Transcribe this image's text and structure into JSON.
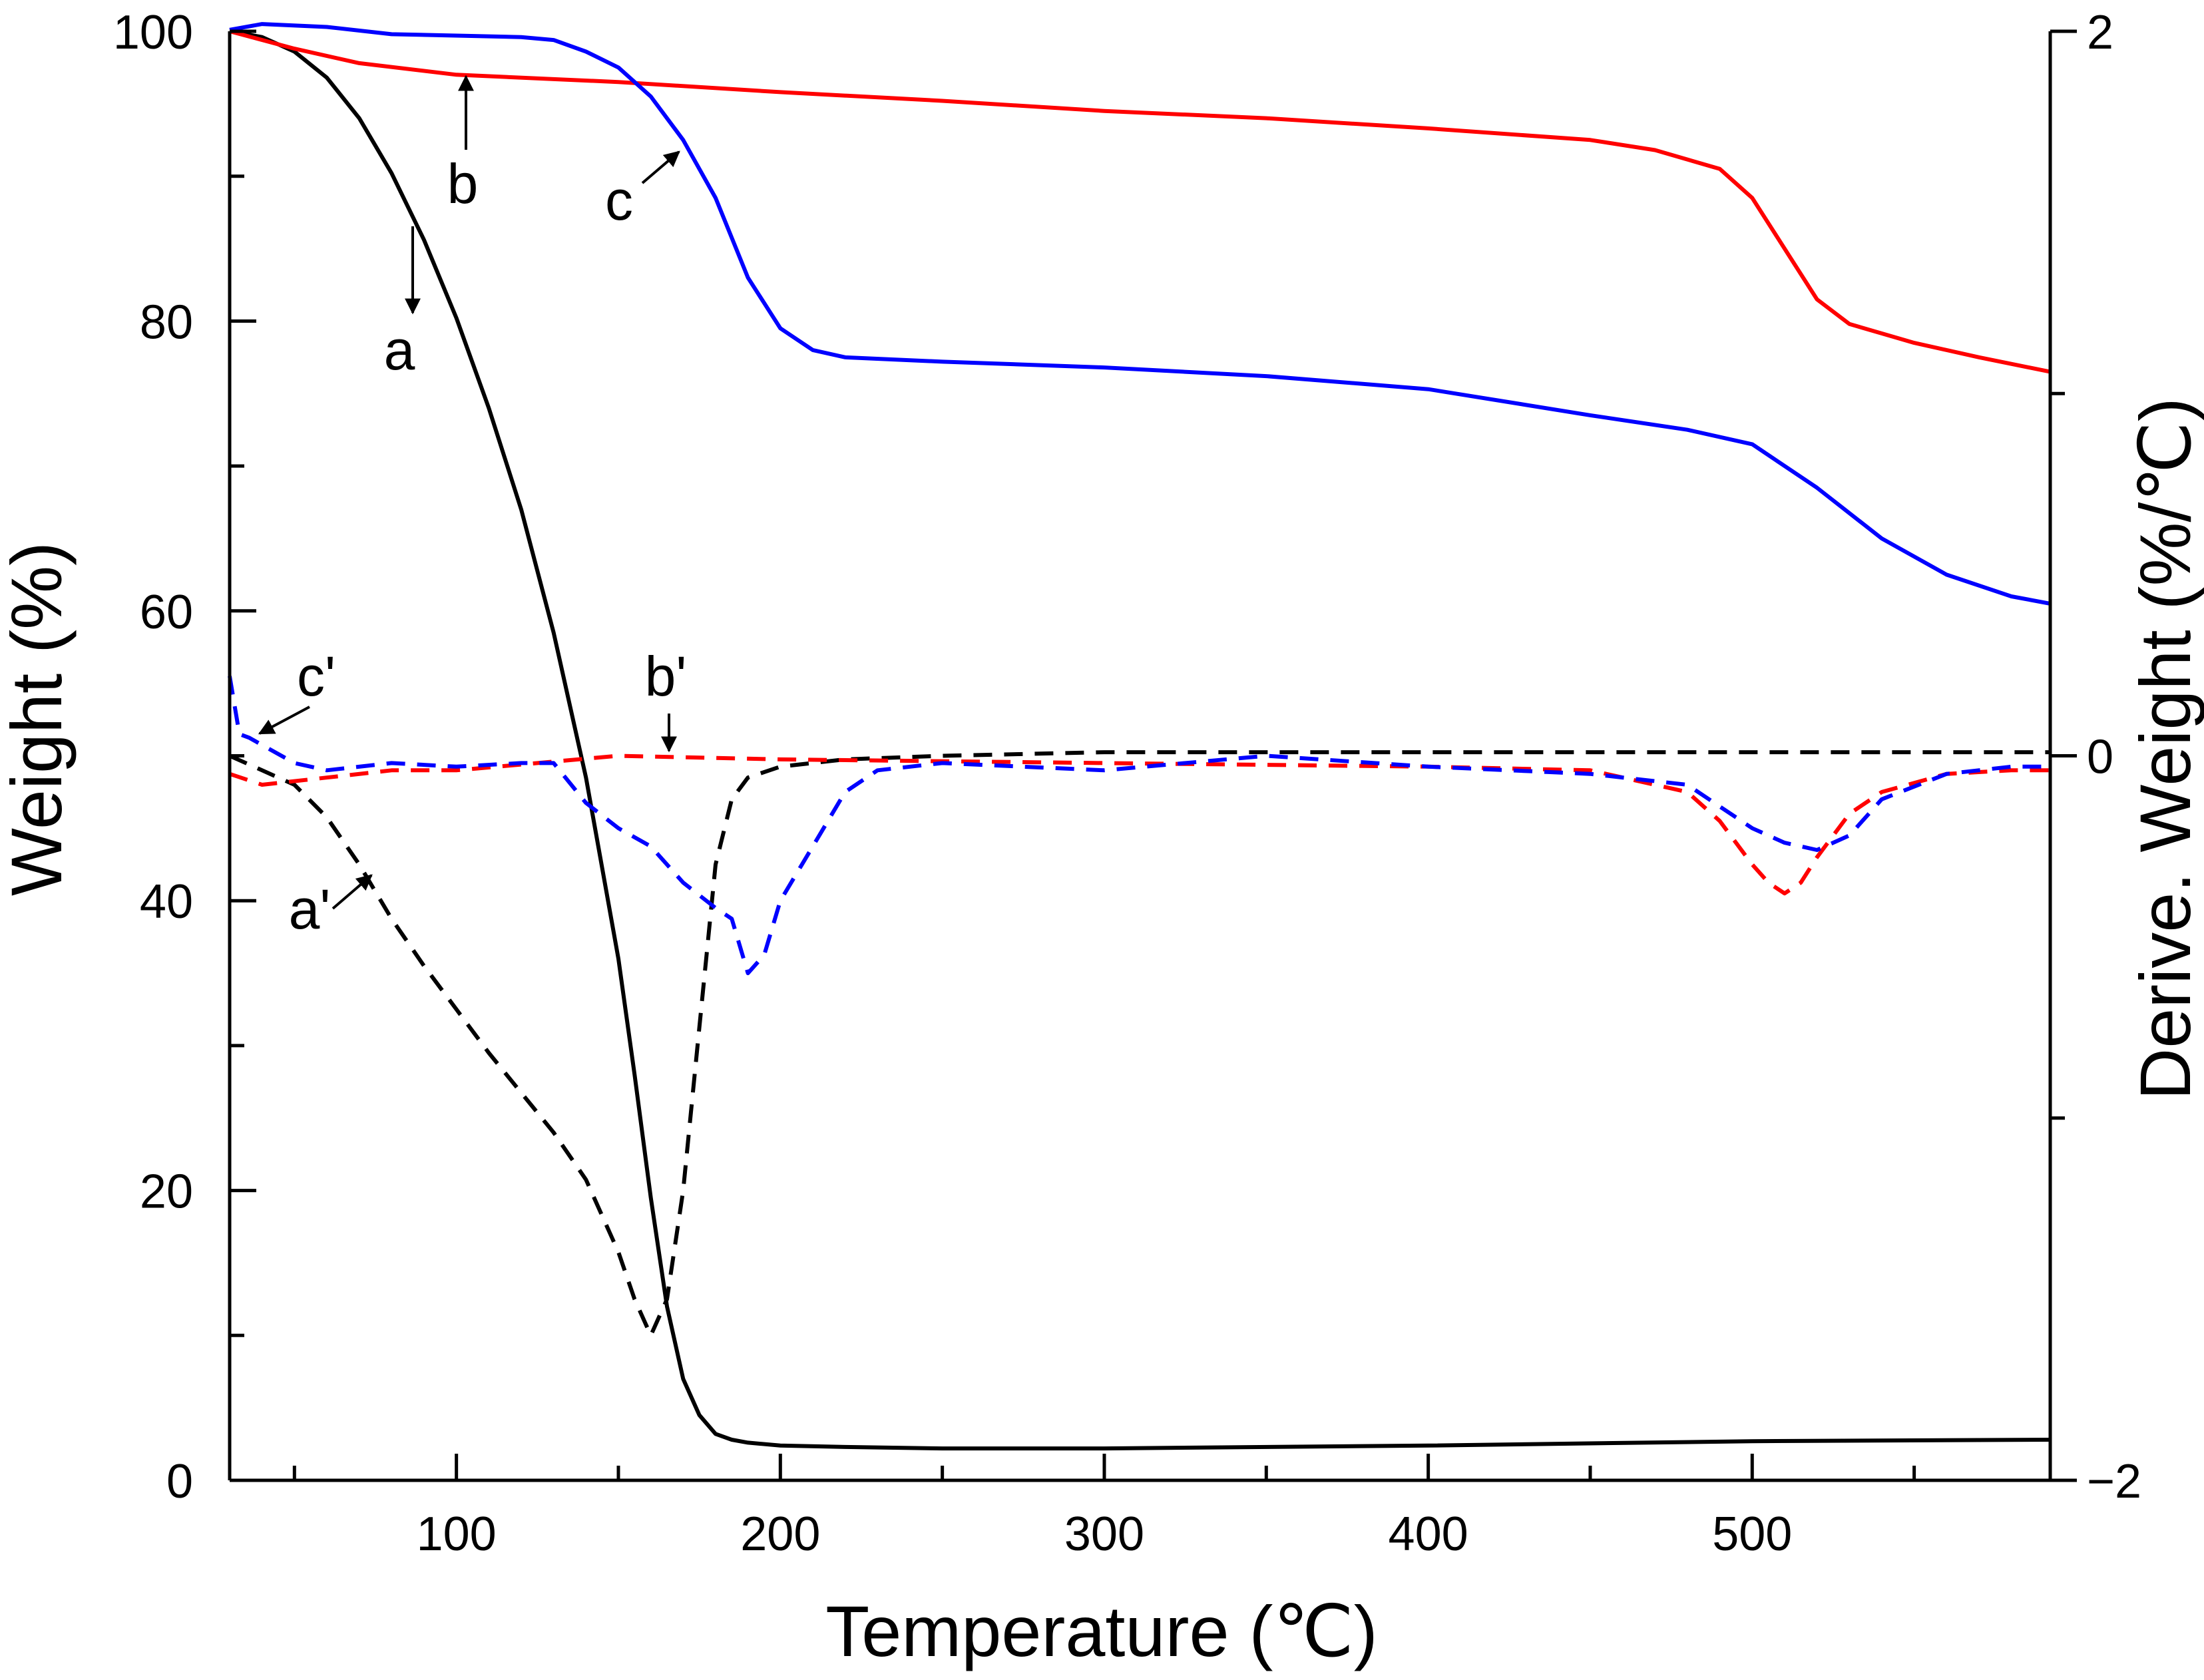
{
  "chart_data": {
    "type": "line",
    "title": "",
    "xlabel": "Temperature (℃)",
    "ylabel": "Weight (%)",
    "y2label": "Derive. Weight (%/℃)",
    "xlim": [
      30,
      592
    ],
    "ylim": [
      0,
      100
    ],
    "y2lim": [
      -2,
      2
    ],
    "xticks": [
      100,
      200,
      300,
      400,
      500
    ],
    "yticks": [
      0,
      20,
      40,
      60,
      80,
      100
    ],
    "y2ticks": [
      -2,
      0,
      2
    ],
    "xtick_labels": [
      "100",
      "200",
      "300",
      "400",
      "500"
    ],
    "ytick_labels": [
      "0",
      "20",
      "40",
      "60",
      "80",
      "100"
    ],
    "y2tick_labels": [
      "−2",
      "0",
      "2"
    ],
    "grid": false,
    "series": [
      {
        "name": "a",
        "axis": "left",
        "style": "solid",
        "color": "#000000",
        "x": [
          30,
          40,
          50,
          60,
          70,
          80,
          90,
          100,
          110,
          120,
          130,
          140,
          150,
          155,
          160,
          165,
          170,
          175,
          180,
          185,
          190,
          200,
          220,
          250,
          300,
          400,
          500,
          592
        ],
        "y": [
          100,
          99.6,
          98.6,
          96.8,
          94,
          90.2,
          85.6,
          80.2,
          74,
          67,
          58.5,
          48.5,
          36,
          28,
          19.5,
          12,
          7,
          4.5,
          3.2,
          2.8,
          2.6,
          2.4,
          2.3,
          2.2,
          2.2,
          2.4,
          2.7,
          2.8
        ]
      },
      {
        "name": "b",
        "axis": "left",
        "style": "solid",
        "color": "#ff0000",
        "x": [
          30,
          50,
          70,
          100,
          150,
          200,
          250,
          300,
          350,
          400,
          450,
          470,
          490,
          500,
          510,
          520,
          530,
          550,
          570,
          592
        ],
        "y": [
          100,
          98.8,
          97.8,
          97,
          96.5,
          95.8,
          95.2,
          94.5,
          94,
          93.3,
          92.5,
          91.8,
          90.5,
          88.5,
          85,
          81.5,
          79.8,
          78.5,
          77.5,
          76.5
        ]
      },
      {
        "name": "c",
        "axis": "left",
        "style": "solid",
        "color": "#0000ff",
        "x": [
          30,
          40,
          60,
          80,
          100,
          120,
          130,
          140,
          150,
          160,
          170,
          180,
          190,
          200,
          210,
          220,
          250,
          300,
          350,
          400,
          450,
          480,
          500,
          520,
          540,
          560,
          580,
          592
        ],
        "y": [
          100.1,
          100.5,
          100.3,
          99.8,
          99.7,
          99.6,
          99.4,
          98.6,
          97.5,
          95.5,
          92.5,
          88.5,
          83,
          79.5,
          78,
          77.5,
          77.2,
          76.8,
          76.2,
          75.3,
          73.5,
          72.5,
          71.5,
          68.5,
          65,
          62.5,
          61,
          60.5
        ]
      },
      {
        "name": "a'",
        "axis": "right",
        "style": "dashed",
        "color": "#000000",
        "x": [
          30,
          40,
          50,
          60,
          70,
          80,
          90,
          100,
          110,
          120,
          130,
          140,
          150,
          155,
          160,
          165,
          170,
          175,
          180,
          185,
          190,
          200,
          220,
          250,
          300,
          400,
          500,
          592
        ],
        "y": [
          0,
          -0.04,
          -0.08,
          -0.17,
          -0.3,
          -0.45,
          -0.58,
          -0.7,
          -0.82,
          -0.93,
          -1.04,
          -1.17,
          -1.37,
          -1.5,
          -1.6,
          -1.5,
          -1.2,
          -0.75,
          -0.3,
          -0.12,
          -0.06,
          -0.03,
          -0.01,
          0,
          0.01,
          0.01,
          0.01,
          0.01
        ]
      },
      {
        "name": "b'",
        "axis": "right",
        "style": "dashed",
        "color": "#ff0000",
        "x": [
          30,
          40,
          60,
          80,
          100,
          150,
          200,
          300,
          400,
          450,
          480,
          490,
          500,
          505,
          510,
          515,
          520,
          530,
          540,
          560,
          580,
          592
        ],
        "y": [
          -0.05,
          -0.08,
          -0.06,
          -0.04,
          -0.04,
          0,
          -0.01,
          -0.02,
          -0.03,
          -0.04,
          -0.1,
          -0.18,
          -0.3,
          -0.35,
          -0.38,
          -0.35,
          -0.28,
          -0.16,
          -0.1,
          -0.05,
          -0.04,
          -0.04
        ]
      },
      {
        "name": "c'",
        "axis": "right",
        "style": "dashed",
        "color": "#0000ff",
        "x": [
          30,
          33,
          36,
          40,
          50,
          60,
          80,
          100,
          120,
          130,
          140,
          150,
          160,
          170,
          180,
          185,
          190,
          195,
          200,
          210,
          220,
          230,
          250,
          300,
          350,
          400,
          450,
          480,
          490,
          500,
          510,
          520,
          530,
          540,
          560,
          580,
          592
        ],
        "y": [
          0.22,
          0.06,
          0.05,
          0.03,
          -0.02,
          -0.04,
          -0.02,
          -0.03,
          -0.02,
          -0.02,
          -0.13,
          -0.2,
          -0.25,
          -0.35,
          -0.42,
          -0.45,
          -0.6,
          -0.55,
          -0.4,
          -0.25,
          -0.1,
          -0.04,
          -0.02,
          -0.04,
          0,
          -0.03,
          -0.05,
          -0.08,
          -0.14,
          -0.2,
          -0.24,
          -0.26,
          -0.22,
          -0.12,
          -0.05,
          -0.03,
          -0.03
        ]
      }
    ],
    "annotations": [
      {
        "label": "a",
        "text": "a"
      },
      {
        "label": "b",
        "text": "b"
      },
      {
        "label": "c",
        "text": "c"
      },
      {
        "label": "a'",
        "text": "a'"
      },
      {
        "label": "b'",
        "text": "b'"
      },
      {
        "label": "c'",
        "text": "c'"
      }
    ]
  }
}
